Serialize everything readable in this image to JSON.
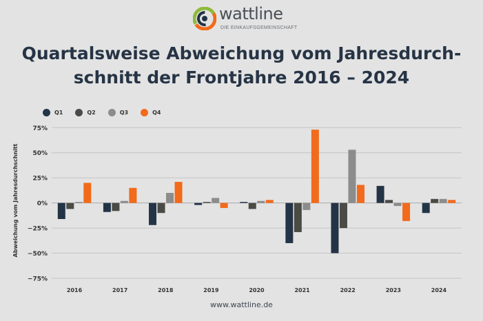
{
  "brand": {
    "name": "wattline",
    "tagline": "DIE EINKAUFSGEMEINSCHAFT",
    "colors": {
      "navy": "#213246",
      "orange": "#f26a1b",
      "green": "#8dbb3a",
      "gray": "#6e7276"
    }
  },
  "title_line1": "Quartalsweise Abweichung vom Jahresdurch-",
  "title_line2": "schnitt der Frontjahre 2016 – 2024",
  "footer": "www.wattline.de",
  "chart_data": {
    "type": "bar",
    "title": "Quartalsweise Abweichung vom Jahresdurchschnitt der Frontjahre 2016 – 2024",
    "xlabel": "",
    "ylabel": "Abweichung vom Jahresdurchschnitt",
    "categories": [
      "2016",
      "2017",
      "2018",
      "2019",
      "2020",
      "2021",
      "2022",
      "2023",
      "2024"
    ],
    "series": [
      {
        "name": "Q1",
        "color": "#243447",
        "values": [
          -16,
          -9,
          -22,
          -2,
          1,
          -40,
          -50,
          17,
          -10
        ]
      },
      {
        "name": "Q2",
        "color": "#4a4b45",
        "values": [
          -6,
          -8,
          -10,
          1,
          -6,
          -29,
          -25,
          3,
          4
        ]
      },
      {
        "name": "Q3",
        "color": "#8c8c8c",
        "values": [
          1,
          2,
          10,
          5,
          2,
          -7,
          53,
          -3,
          4
        ]
      },
      {
        "name": "Q4",
        "color": "#f26a1b",
        "values": [
          20,
          15,
          21,
          -5,
          3,
          73,
          18,
          -18,
          3
        ]
      }
    ],
    "ylim": [
      -75,
      80
    ],
    "yticks": [
      -75,
      -50,
      -25,
      0,
      25,
      50,
      75
    ],
    "ytick_labels": [
      "−75%",
      "−50%",
      "−25%",
      "0%",
      "25%",
      "50%",
      "75%"
    ],
    "grid": true,
    "legend_position": "top-left"
  }
}
